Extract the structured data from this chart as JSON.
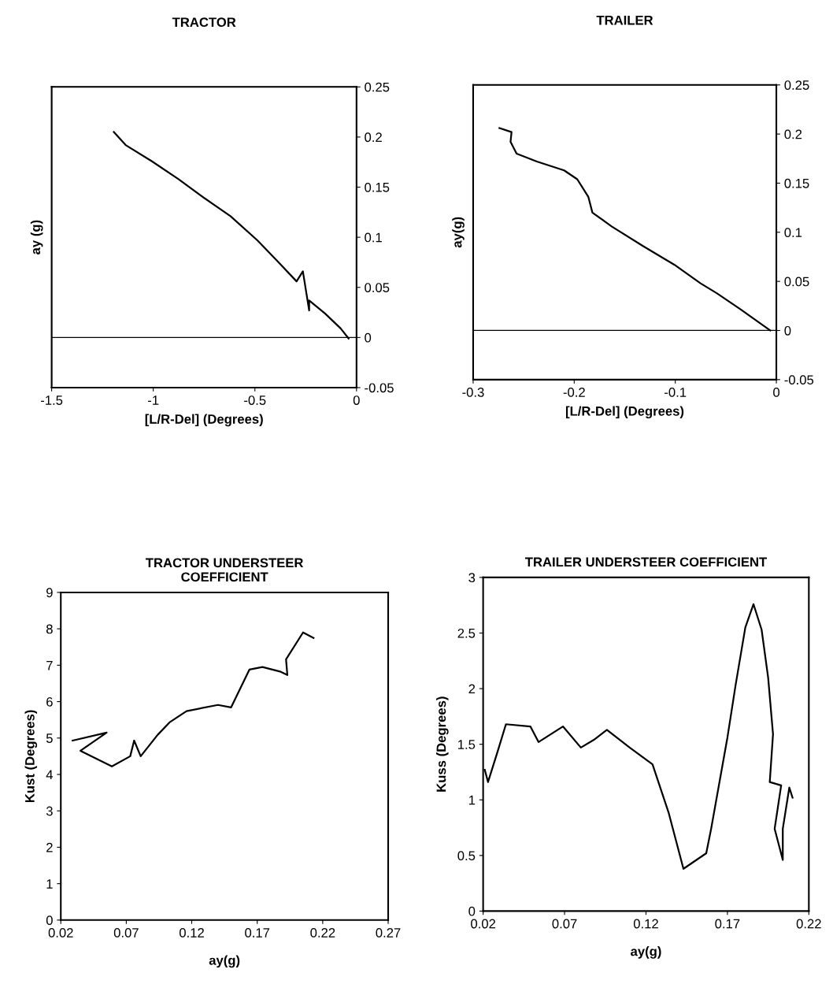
{
  "chart_data": [
    {
      "type": "line",
      "title": "TRACTOR",
      "xlabel": "[L/R-Del] (Degrees)",
      "ylabel": "ay (g)",
      "xlim": [
        -1.5,
        0
      ],
      "xticks": [
        -1.5,
        -1,
        -0.5,
        0
      ],
      "y2lim": [
        -0.05,
        0.25
      ],
      "y2ticks": [
        -0.05,
        0,
        0.05,
        0.1,
        0.15,
        0.2,
        0.25
      ],
      "grid": false,
      "ref_lines": [
        {
          "axis": "y2",
          "value": 0,
          "color": "#000000"
        }
      ],
      "series": [
        {
          "color": "#000000",
          "axis": "y2",
          "x": [
            -1.194,
            -1.136,
            -1.008,
            -0.876,
            -0.748,
            -0.62,
            -0.488,
            -0.388,
            -0.295,
            -0.264,
            -0.233,
            -0.233,
            -0.155,
            -0.078,
            -0.039
          ],
          "values": [
            0.205,
            0.192,
            0.176,
            0.158,
            0.139,
            0.121,
            0.097,
            0.076,
            0.056,
            0.066,
            0.027,
            0.037,
            0.024,
            0.009,
            -0.001
          ]
        }
      ]
    },
    {
      "type": "line",
      "title": "TRAILER",
      "xlabel": "[L/R-Del] (Degrees)",
      "ylabel": "ay(g)",
      "xlim": [
        -0.3,
        0
      ],
      "xticks": [
        -0.3,
        -0.2,
        -0.1,
        0
      ],
      "y2lim": [
        -0.05,
        0.25
      ],
      "y2ticks": [
        -0.05,
        0,
        0.05,
        0.1,
        0.15,
        0.2,
        0.25
      ],
      "grid": false,
      "ref_lines": [
        {
          "axis": "y2",
          "value": 0,
          "color": "#000000"
        }
      ],
      "series": [
        {
          "color": "#000000",
          "axis": "y2",
          "x": [
            -0.274,
            -0.262,
            -0.263,
            -0.257,
            -0.237,
            -0.21,
            -0.197,
            -0.186,
            -0.182,
            -0.163,
            -0.132,
            -0.101,
            -0.075,
            -0.059,
            -0.036,
            -0.006
          ],
          "values": [
            0.206,
            0.202,
            0.192,
            0.18,
            0.172,
            0.163,
            0.154,
            0.136,
            0.12,
            0.106,
            0.086,
            0.067,
            0.048,
            0.038,
            0.022,
            0.0
          ]
        }
      ]
    },
    {
      "type": "line",
      "title": "TRACTOR UNDERSTEER\nCOEFFICIENT",
      "xlabel": "ay(g)",
      "ylabel": "Kust (Degrees)",
      "xlim": [
        0.02,
        0.27
      ],
      "xticks": [
        0.02,
        0.07,
        0.12,
        0.17,
        0.22,
        0.27
      ],
      "ylim": [
        0,
        9
      ],
      "yticks": [
        0,
        1,
        2,
        3,
        4,
        5,
        6,
        7,
        8,
        9
      ],
      "grid": false,
      "series": [
        {
          "color": "#000000",
          "x": [
            0.029,
            0.055,
            0.035,
            0.059,
            0.073,
            0.076,
            0.081,
            0.094,
            0.103,
            0.116,
            0.14,
            0.15,
            0.164,
            0.174,
            0.188,
            0.193,
            0.192,
            0.205,
            0.213
          ],
          "values": [
            4.93,
            5.15,
            4.65,
            4.22,
            4.5,
            4.93,
            4.5,
            5.09,
            5.43,
            5.74,
            5.91,
            5.84,
            6.88,
            6.95,
            6.82,
            6.73,
            7.16,
            7.9,
            7.75
          ]
        }
      ]
    },
    {
      "type": "line",
      "title": "TRAILER UNDERSTEER COEFFICIENT",
      "xlabel": "ay(g)",
      "ylabel": "Kuss (Degrees)",
      "xlim": [
        0.02,
        0.22
      ],
      "xticks": [
        0.02,
        0.07,
        0.12,
        0.17,
        0.22
      ],
      "ylim": [
        0,
        3
      ],
      "yticks": [
        0,
        0.5,
        1,
        1.5,
        2,
        2.5,
        3
      ],
      "grid": false,
      "series": [
        {
          "color": "#000000",
          "x": [
            0.021,
            0.023,
            0.026,
            0.029,
            0.034,
            0.049,
            0.054,
            0.069,
            0.08,
            0.088,
            0.096,
            0.11,
            0.124,
            0.134,
            0.143,
            0.157,
            0.16,
            0.17,
            0.175,
            0.181,
            0.186,
            0.191,
            0.195,
            0.198,
            0.196,
            0.203,
            0.199,
            0.204,
            0.204,
            0.208,
            0.21
          ],
          "values": [
            1.27,
            1.16,
            1.3,
            1.44,
            1.68,
            1.66,
            1.52,
            1.66,
            1.47,
            1.54,
            1.63,
            1.47,
            1.32,
            0.88,
            0.38,
            0.52,
            0.74,
            1.56,
            2.03,
            2.55,
            2.76,
            2.53,
            2.1,
            1.59,
            1.16,
            1.13,
            0.74,
            0.46,
            0.74,
            1.11,
            1.02
          ]
        }
      ]
    }
  ]
}
